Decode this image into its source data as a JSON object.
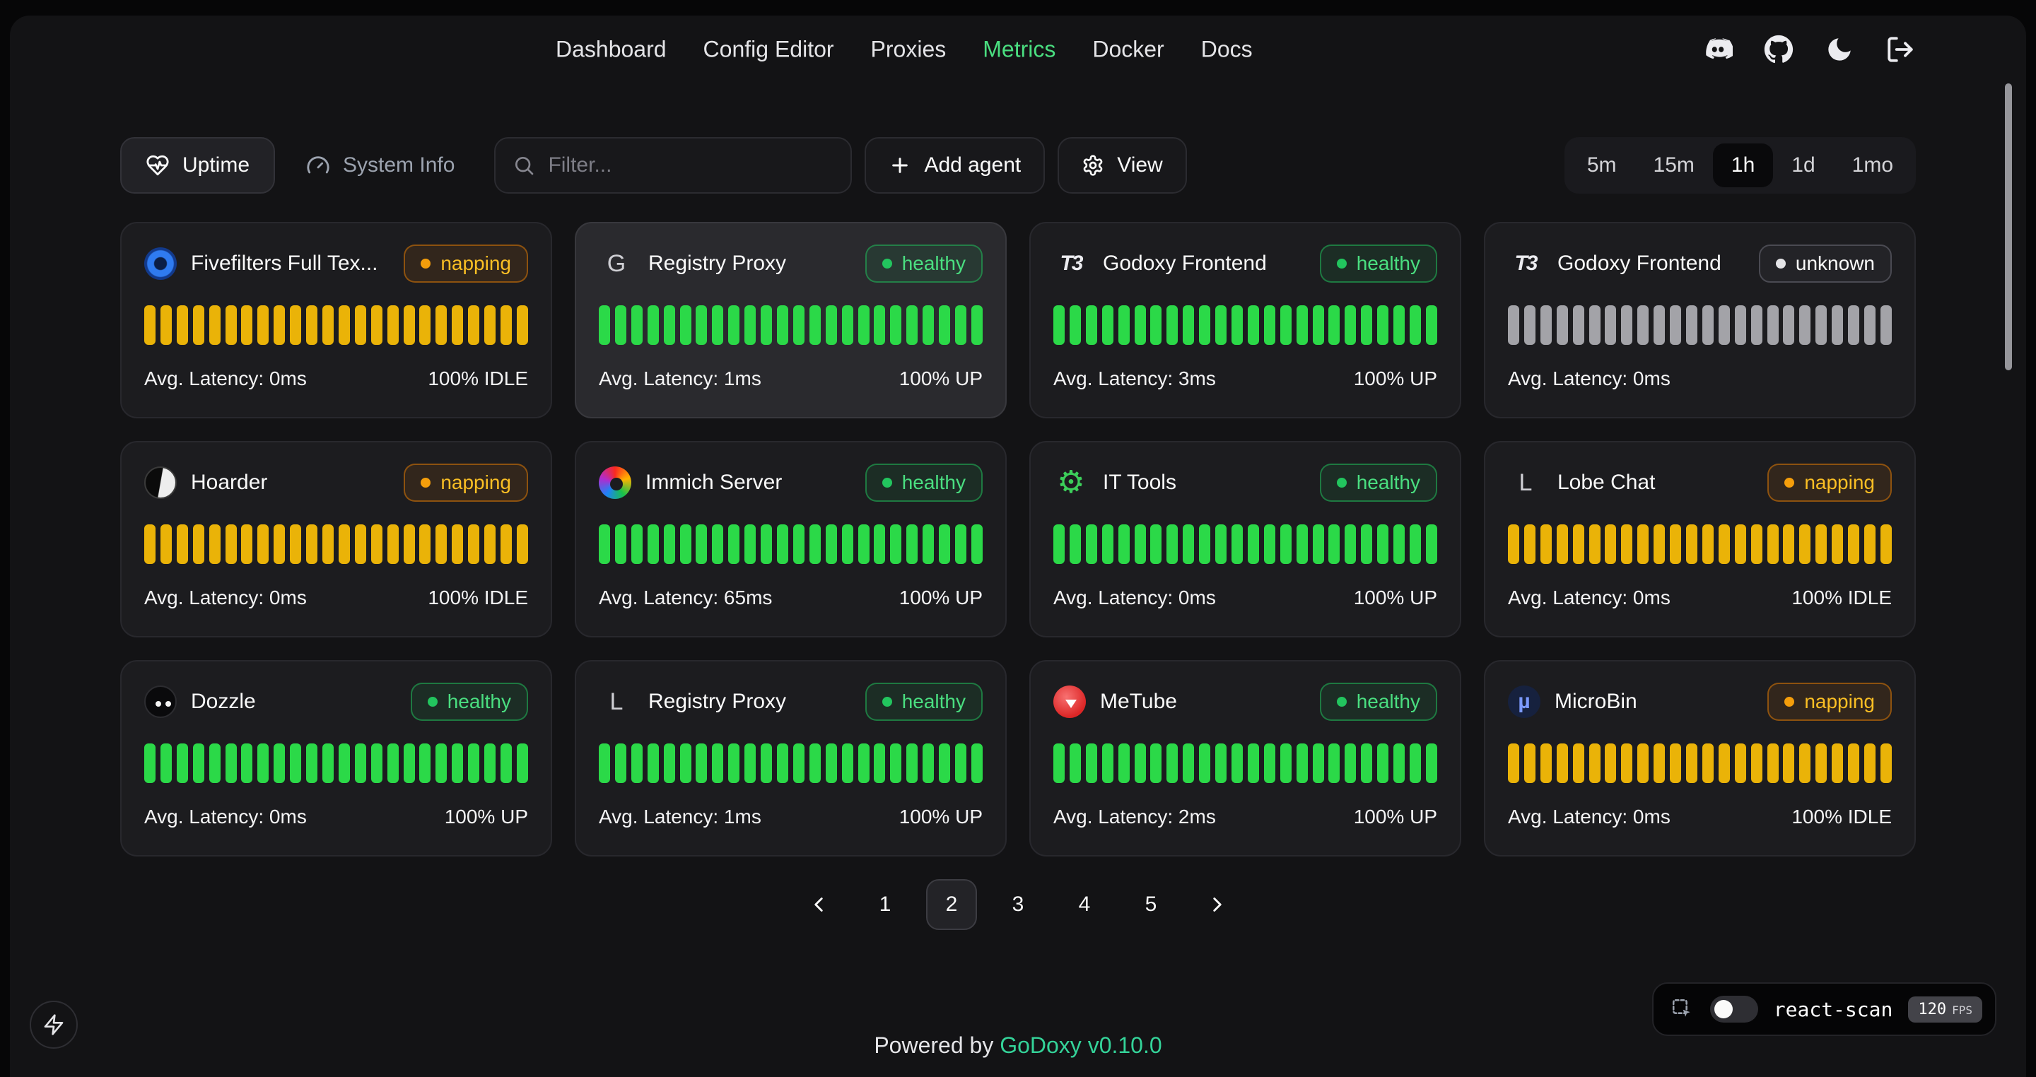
{
  "nav": {
    "items": [
      {
        "label": "Dashboard",
        "active": false
      },
      {
        "label": "Config Editor",
        "active": false
      },
      {
        "label": "Proxies",
        "active": false
      },
      {
        "label": "Metrics",
        "active": true
      },
      {
        "label": "Docker",
        "active": false
      },
      {
        "label": "Docs",
        "active": false
      }
    ]
  },
  "toolbar": {
    "tabs": [
      {
        "label": "Uptime",
        "icon": "heart-pulse-icon",
        "active": true
      },
      {
        "label": "System Info",
        "icon": "gauge-icon",
        "active": false
      }
    ],
    "filter": {
      "placeholder": "Filter..."
    },
    "add_agent_label": "Add agent",
    "view_label": "View",
    "time_ranges": [
      {
        "label": "5m",
        "active": false
      },
      {
        "label": "15m",
        "active": false
      },
      {
        "label": "1h",
        "active": true
      },
      {
        "label": "1d",
        "active": false
      },
      {
        "label": "1mo",
        "active": false
      }
    ]
  },
  "colors": {
    "accent_green": "#4ade80",
    "bar_up": "#2bd948",
    "bar_idle": "#eab308",
    "bar_unknown": "#a3a3a8",
    "status_napping_text": "#fbbf24",
    "status_healthy_text": "#4ade80",
    "status_unknown_text": "#fafafa",
    "brand_green": "#34d399"
  },
  "cards": [
    {
      "name": "Fivefilters Full Tex...",
      "icon": {
        "name": "fivefilters-logo",
        "kind": "fivefilters",
        "text": ""
      },
      "status": "napping",
      "latency": "Avg. Latency: 0ms",
      "uptime": "100% IDLE",
      "bars": 24,
      "highlighted": false
    },
    {
      "name": "Registry Proxy",
      "icon": {
        "name": "letter-avatar-g",
        "kind": "letter",
        "text": "G"
      },
      "status": "healthy",
      "latency": "Avg. Latency: 1ms",
      "uptime": "100% UP",
      "bars": 24,
      "highlighted": true
    },
    {
      "name": "Godoxy Frontend",
      "icon": {
        "name": "godoxy-logo",
        "kind": "godoxy",
        "text": "T3"
      },
      "status": "healthy",
      "latency": "Avg. Latency: 3ms",
      "uptime": "100% UP",
      "bars": 24,
      "highlighted": false
    },
    {
      "name": "Godoxy Frontend",
      "icon": {
        "name": "godoxy-logo",
        "kind": "godoxy",
        "text": "T3"
      },
      "status": "unknown",
      "latency": "Avg. Latency: 0ms",
      "uptime": "",
      "bars": 24,
      "highlighted": false
    },
    {
      "name": "Hoarder",
      "icon": {
        "name": "hoarder-logo",
        "kind": "hoarder",
        "text": ""
      },
      "status": "napping",
      "latency": "Avg. Latency: 0ms",
      "uptime": "100% IDLE",
      "bars": 24,
      "highlighted": false
    },
    {
      "name": "Immich Server",
      "icon": {
        "name": "immich-logo",
        "kind": "immich",
        "text": ""
      },
      "status": "healthy",
      "latency": "Avg. Latency: 65ms",
      "uptime": "100% UP",
      "bars": 24,
      "highlighted": false
    },
    {
      "name": "IT Tools",
      "icon": {
        "name": "it-tools-logo",
        "kind": "ittools",
        "text": "⚙"
      },
      "status": "healthy",
      "latency": "Avg. Latency: 0ms",
      "uptime": "100% UP",
      "bars": 24,
      "highlighted": false
    },
    {
      "name": "Lobe Chat",
      "icon": {
        "name": "letter-avatar-l",
        "kind": "letter",
        "text": "L"
      },
      "status": "napping",
      "latency": "Avg. Latency: 0ms",
      "uptime": "100% IDLE",
      "bars": 24,
      "highlighted": false
    },
    {
      "name": "Dozzle",
      "icon": {
        "name": "dozzle-logo",
        "kind": "dozzle",
        "text": ""
      },
      "status": "healthy",
      "latency": "Avg. Latency: 0ms",
      "uptime": "100% UP",
      "bars": 24,
      "highlighted": false
    },
    {
      "name": "Registry Proxy",
      "icon": {
        "name": "letter-avatar-l",
        "kind": "letter",
        "text": "L"
      },
      "status": "healthy",
      "latency": "Avg. Latency: 1ms",
      "uptime": "100% UP",
      "bars": 24,
      "highlighted": false
    },
    {
      "name": "MeTube",
      "icon": {
        "name": "metube-logo",
        "kind": "metube",
        "text": ""
      },
      "status": "healthy",
      "latency": "Avg. Latency: 2ms",
      "uptime": "100% UP",
      "bars": 24,
      "highlighted": false
    },
    {
      "name": "MicroBin",
      "icon": {
        "name": "microbin-logo",
        "kind": "microbin",
        "text": "µ"
      },
      "status": "napping",
      "latency": "Avg. Latency: 0ms",
      "uptime": "100% IDLE",
      "bars": 24,
      "highlighted": false
    }
  ],
  "pagination": {
    "pages": [
      {
        "label": "1",
        "active": false
      },
      {
        "label": "2",
        "active": true
      },
      {
        "label": "3",
        "active": false
      },
      {
        "label": "4",
        "active": false
      },
      {
        "label": "5",
        "active": false
      }
    ]
  },
  "footer": {
    "powered_by": "Powered by",
    "brand": "GoDoxy",
    "version": "v0.10.0"
  },
  "react_scan": {
    "label": "react-scan",
    "fps_value": "120",
    "fps_unit": "FPS",
    "toggle_on": false
  }
}
